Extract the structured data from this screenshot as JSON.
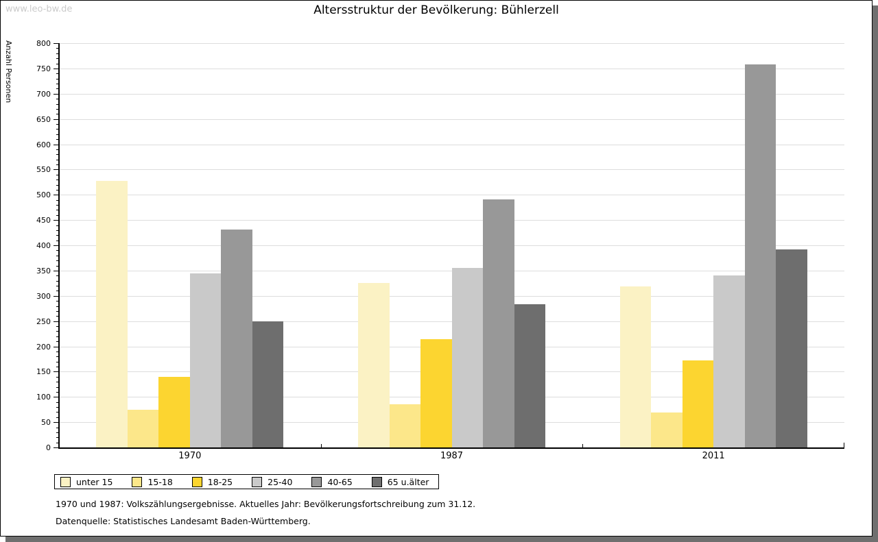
{
  "page": {
    "watermark": "www.leo-bw.de",
    "title": "Altersstruktur der Bevölkerung: Bühlerzell",
    "footnote_line1": "1970 und 1987: Volkszählungsergebnisse. Aktuelles Jahr: Bevölkerungsfortschreibung zum 31.12.",
    "footnote_line2": "Datenquelle: Statistisches Landesamt Baden-Württemberg."
  },
  "chart_data": {
    "type": "bar",
    "title": "Altersstruktur der Bevölkerung: Bühlerzell",
    "xlabel": "",
    "ylabel": "Anzahl Personen",
    "ylim": [
      0,
      800
    ],
    "ytick_step": 50,
    "yminor_step": 10,
    "grid": true,
    "legend_position": "bottom-left",
    "categories": [
      "1970",
      "1987",
      "2011"
    ],
    "series": [
      {
        "name": "unter 15",
        "color": "#FBF2C4",
        "values": [
          527,
          326,
          318
        ]
      },
      {
        "name": "15-18",
        "color": "#FCE78A",
        "values": [
          74,
          86,
          69
        ]
      },
      {
        "name": "18-25",
        "color": "#FCD530",
        "values": [
          140,
          214,
          172
        ]
      },
      {
        "name": "25-40",
        "color": "#C9C9C9",
        "values": [
          345,
          355,
          341
        ]
      },
      {
        "name": "40-65",
        "color": "#989898",
        "values": [
          431,
          491,
          758
        ]
      },
      {
        "name": "65 u.älter",
        "color": "#6E6E6E",
        "values": [
          249,
          284,
          392
        ]
      }
    ]
  },
  "colors": {
    "gridline": "#DDDDDD",
    "axis": "#000000",
    "shadow": "#6F6F6F",
    "watermark": "#CBCBCB"
  }
}
